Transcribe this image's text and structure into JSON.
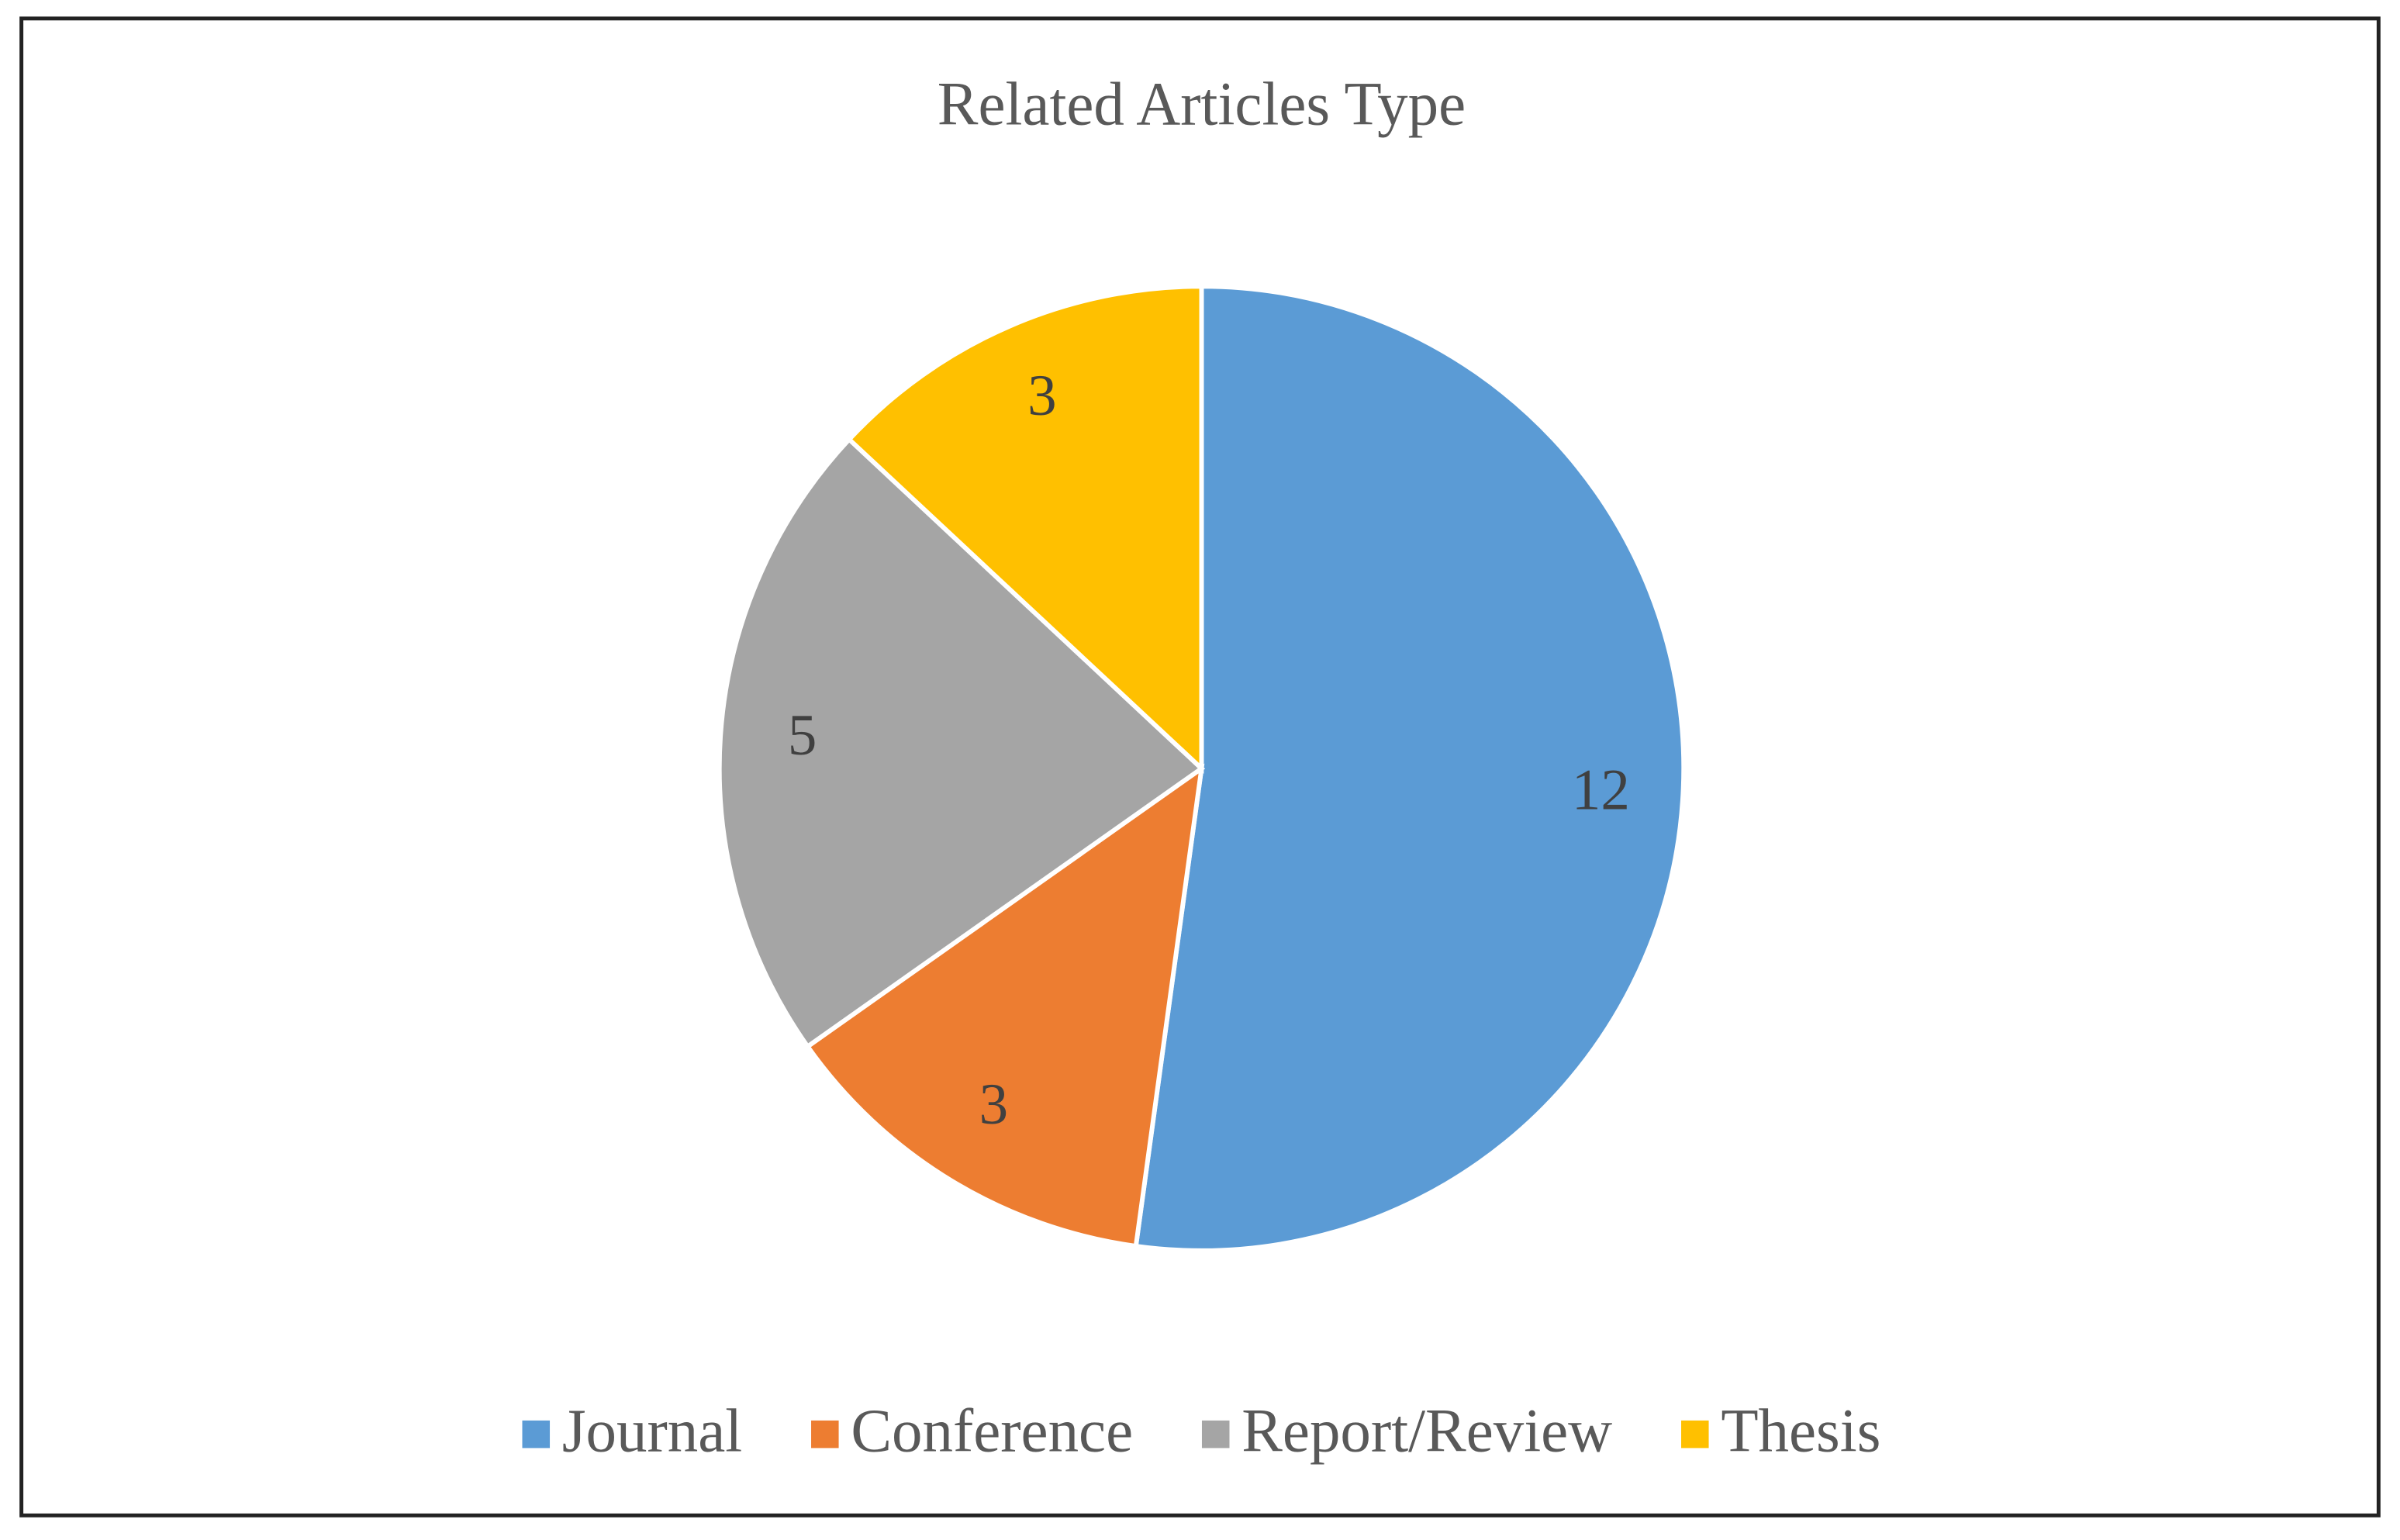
{
  "chart_data": {
    "type": "pie",
    "title": "Related Articles Type",
    "categories": [
      "Journal",
      "Conference",
      "Report/Review",
      "Thesis"
    ],
    "values": [
      12,
      3,
      5,
      3
    ],
    "colors": [
      "#5b9bd5",
      "#ed7d31",
      "#a5a5a5",
      "#ffc000"
    ],
    "legend": "bottom"
  }
}
